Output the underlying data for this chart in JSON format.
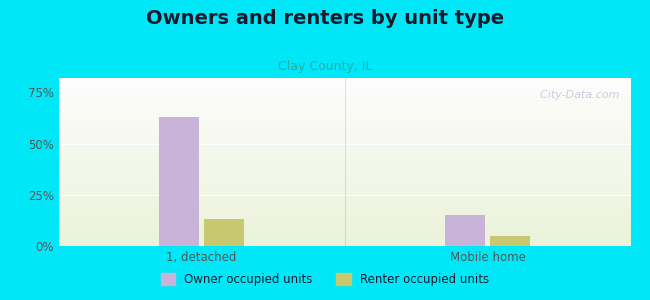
{
  "title": "Owners and renters by unit type",
  "subtitle": "Clay County, IL",
  "categories": [
    "1, detached",
    "Mobile home"
  ],
  "owner_values": [
    63.0,
    15.0
  ],
  "renter_values": [
    13.0,
    5.0
  ],
  "owner_color": "#c9b3d9",
  "renter_color": "#c8c870",
  "owner_label": "Owner occupied units",
  "renter_label": "Renter occupied units",
  "yticks": [
    0,
    25,
    50,
    75
  ],
  "ytick_labels": [
    "0%",
    "25%",
    "50%",
    "75%"
  ],
  "ylim": [
    0,
    82
  ],
  "background_outer": "#00e8f8",
  "title_fontsize": 14,
  "subtitle_fontsize": 9,
  "subtitle_color": "#2aaaaa",
  "watermark": "  City-Data.com",
  "tick_color": "#555555",
  "grid_color": "#dddddd"
}
